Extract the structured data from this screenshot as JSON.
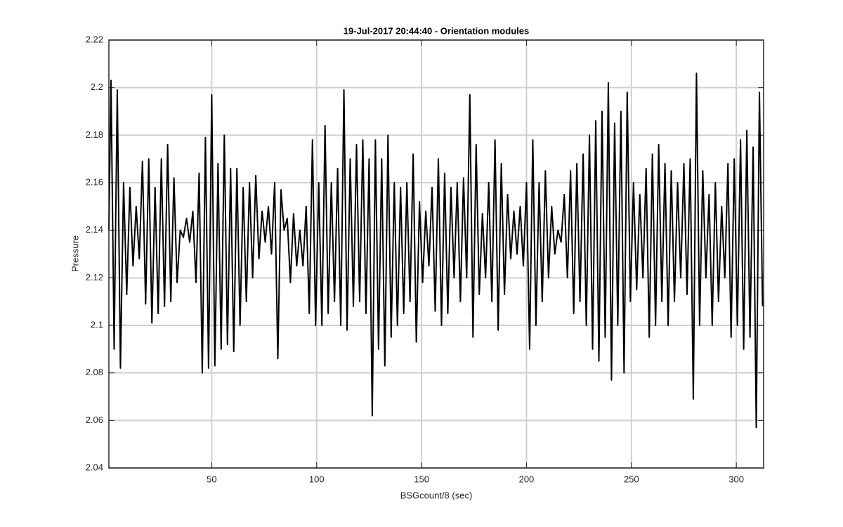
{
  "chart_data": {
    "type": "line",
    "title": "19-Jul-2017 20:44:40 - Orientation modules",
    "xlabel": "BSGcount/8 (sec)",
    "ylabel": "Pressure",
    "xlim": [
      1,
      313
    ],
    "ylim": [
      2.04,
      2.22
    ],
    "xticks": [
      50,
      100,
      150,
      200,
      250,
      300
    ],
    "yticks": [
      2.04,
      2.06,
      2.08,
      2.1,
      2.12,
      2.14,
      2.16,
      2.18,
      2.2,
      2.22
    ],
    "grid": true,
    "x": [
      1,
      2,
      3.5,
      5,
      6.5,
      8,
      9.5,
      11,
      12.5,
      14,
      15.5,
      17,
      18.5,
      20,
      21.5,
      23,
      24.5,
      26,
      27.5,
      29,
      30.5,
      32,
      33.5,
      35,
      36.5,
      38,
      39.5,
      41,
      42.5,
      44,
      45.5,
      47,
      48.5,
      50,
      51.5,
      53,
      54.5,
      56,
      57.5,
      59,
      60.5,
      62,
      63.5,
      65,
      66.5,
      68,
      69.5,
      71,
      72.5,
      74,
      75.5,
      77,
      78.5,
      80,
      81.5,
      83,
      84.5,
      86,
      87.5,
      89,
      90.5,
      92,
      93.5,
      95,
      96.5,
      98,
      99.5,
      101,
      102.5,
      104,
      105.5,
      107,
      108.5,
      110,
      111.5,
      113,
      114.5,
      116,
      117.5,
      119,
      120.5,
      122,
      123.5,
      125,
      126.5,
      128,
      129.5,
      131,
      132.5,
      134,
      135.5,
      137,
      138.5,
      140,
      141.5,
      143,
      144.5,
      146,
      147.5,
      149,
      150.5,
      152,
      153.5,
      155,
      156.5,
      158,
      159.5,
      161,
      162.5,
      164,
      165.5,
      167,
      168.5,
      170,
      171.5,
      173,
      174.5,
      176,
      177.5,
      179,
      180.5,
      182,
      183.5,
      185,
      186.5,
      188,
      189.5,
      191,
      192.5,
      194,
      195.5,
      197,
      198.5,
      200,
      201.5,
      203,
      204.5,
      206,
      207.5,
      209,
      210.5,
      212,
      213.5,
      215,
      216.5,
      218,
      219.5,
      221,
      222.5,
      224,
      225.5,
      227,
      228.5,
      230,
      231.5,
      233,
      234.5,
      236,
      237.5,
      239,
      240.5,
      242,
      243.5,
      245,
      246.5,
      248,
      249.5,
      251,
      252.5,
      254,
      255.5,
      257,
      258.5,
      260,
      261.5,
      263,
      264.5,
      266,
      267.5,
      269,
      270.5,
      272,
      273.5,
      275,
      276.5,
      278,
      279.5,
      281,
      282.5,
      284,
      285.5,
      287,
      288.5,
      290,
      291.5,
      293,
      294.5,
      296,
      297.5,
      299,
      300.5,
      302,
      303.5,
      305,
      306.5,
      308,
      309.5,
      311,
      312.5
    ],
    "series": [
      {
        "name": "Pressure",
        "color": "#000000",
        "values": [
          2.14,
          2.203,
          2.09,
          2.199,
          2.082,
          2.16,
          2.113,
          2.158,
          2.125,
          2.15,
          2.128,
          2.169,
          2.109,
          2.17,
          2.101,
          2.158,
          2.105,
          2.17,
          2.108,
          2.176,
          2.11,
          2.162,
          2.118,
          2.14,
          2.137,
          2.145,
          2.135,
          2.148,
          2.118,
          2.164,
          2.08,
          2.179,
          2.082,
          2.197,
          2.083,
          2.168,
          2.09,
          2.18,
          2.092,
          2.166,
          2.089,
          2.166,
          2.1,
          2.158,
          2.11,
          2.16,
          2.12,
          2.163,
          2.128,
          2.148,
          2.135,
          2.15,
          2.13,
          2.16,
          2.086,
          2.157,
          2.14,
          2.145,
          2.118,
          2.147,
          2.125,
          2.14,
          2.125,
          2.15,
          2.105,
          2.178,
          2.1,
          2.16,
          2.1,
          2.184,
          2.105,
          2.16,
          2.11,
          2.166,
          2.1,
          2.199,
          2.098,
          2.17,
          2.108,
          2.176,
          2.11,
          2.178,
          2.105,
          2.17,
          2.062,
          2.178,
          2.09,
          2.17,
          2.083,
          2.18,
          2.095,
          2.16,
          2.1,
          2.158,
          2.105,
          2.16,
          2.11,
          2.172,
          2.093,
          2.152,
          2.118,
          2.148,
          2.125,
          2.158,
          2.106,
          2.17,
          2.1,
          2.164,
          2.105,
          2.158,
          2.12,
          2.16,
          2.11,
          2.162,
          2.12,
          2.197,
          2.095,
          2.176,
          2.113,
          2.147,
          2.12,
          2.16,
          2.11,
          2.178,
          2.098,
          2.168,
          2.113,
          2.155,
          2.128,
          2.148,
          2.13,
          2.15,
          2.125,
          2.16,
          2.09,
          2.178,
          2.1,
          2.16,
          2.11,
          2.165,
          2.12,
          2.15,
          2.13,
          2.14,
          2.135,
          2.155,
          2.12,
          2.165,
          2.105,
          2.168,
          2.11,
          2.172,
          2.1,
          2.18,
          2.09,
          2.186,
          2.085,
          2.19,
          2.095,
          2.202,
          2.077,
          2.185,
          2.1,
          2.19,
          2.08,
          2.198,
          2.11,
          2.16,
          2.115,
          2.155,
          2.12,
          2.166,
          2.095,
          2.172,
          2.1,
          2.176,
          2.11,
          2.168,
          2.1,
          2.165,
          2.11,
          2.16,
          2.12,
          2.168,
          2.113,
          2.17,
          2.069,
          2.206,
          2.1,
          2.165,
          2.12,
          2.155,
          2.1,
          2.16,
          2.11,
          2.15,
          2.12,
          2.168,
          2.095,
          2.17,
          2.1,
          2.178,
          2.09,
          2.182,
          2.095,
          2.175,
          2.057,
          2.198,
          2.108
        ]
      }
    ]
  }
}
